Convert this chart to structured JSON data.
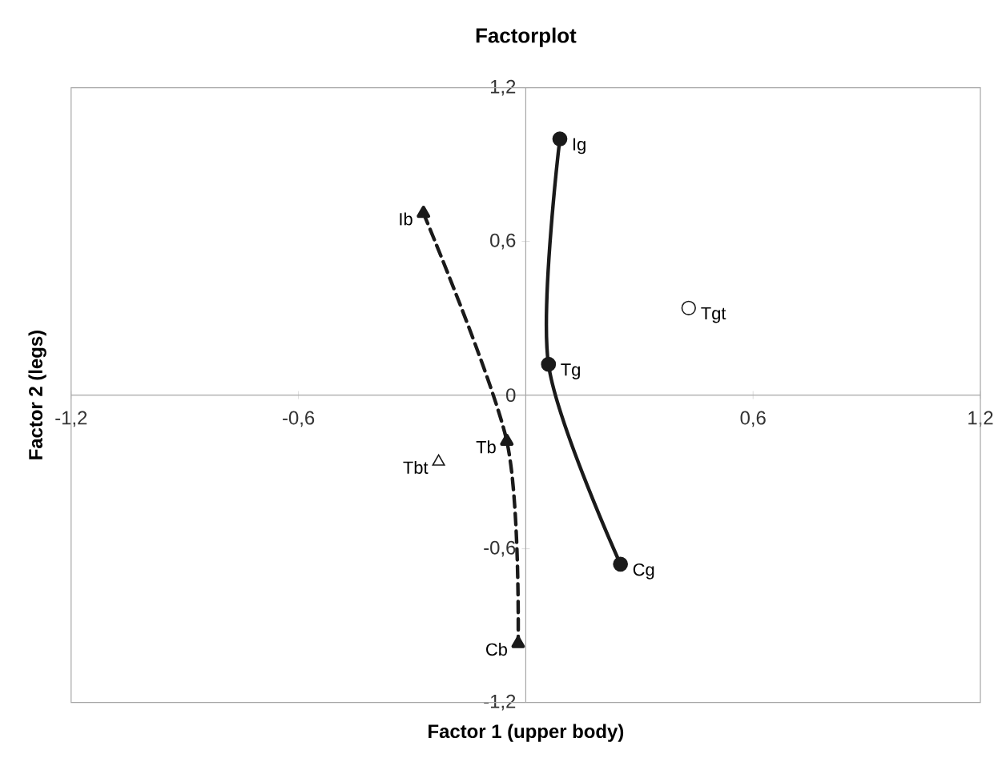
{
  "chart_data": {
    "type": "line",
    "title": "Factorplot",
    "xlabel": "Factor 1 (upper body)",
    "ylabel": "Factor 2 (legs)",
    "xlim": [
      -1.2,
      1.2
    ],
    "ylim": [
      -1.2,
      1.2
    ],
    "xticks": [
      {
        "value": -1.2,
        "label": "-1,2"
      },
      {
        "value": -0.6,
        "label": "-0,6"
      },
      {
        "value": 0.6,
        "label": "0,6"
      },
      {
        "value": 1.2,
        "label": "1,2"
      }
    ],
    "yticks": [
      {
        "value": -1.2,
        "label": "-1,2"
      },
      {
        "value": -0.6,
        "label": "-0,6"
      },
      {
        "value": 0,
        "label": "0"
      },
      {
        "value": 0.6,
        "label": "0,6"
      },
      {
        "value": 1.2,
        "label": "1,2"
      }
    ],
    "series": [
      {
        "color": "#1a1a1a",
        "marker": "circle",
        "line_style": "solid",
        "x": [
          0.09,
          0.06,
          0.25
        ],
        "values": [
          1.0,
          0.12,
          -0.66
        ]
      },
      {
        "color": "#1a1a1a",
        "marker": "triangle",
        "line_style": "dashed",
        "x": [
          -0.27,
          -0.05,
          -0.02
        ],
        "values": [
          0.71,
          -0.18,
          -0.97
        ]
      },
      {
        "type": "scatter",
        "color": "#1a1a1a",
        "marker": "circle",
        "x": [
          0.43
        ],
        "values": [
          0.34
        ]
      },
      {
        "type": "scatter",
        "color": "#1a1a1a",
        "marker": "triangle",
        "x": [
          -0.23
        ],
        "values": [
          -0.26
        ]
      }
    ],
    "annotations": [
      {
        "text": "Ig",
        "x": 0.09,
        "y": 1.0
      },
      {
        "text": "Tg",
        "x": 0.06,
        "y": 0.12
      },
      {
        "text": "Cg",
        "x": 0.25,
        "y": -0.66
      },
      {
        "text": "Tgt",
        "x": 0.43,
        "y": 0.34
      },
      {
        "text": "Ib",
        "x": -0.27,
        "y": 0.71
      },
      {
        "text": "Tb",
        "x": -0.05,
        "y": -0.18
      },
      {
        "text": "Cb",
        "x": -0.02,
        "y": -0.97
      },
      {
        "text": "Tbt",
        "x": -0.23,
        "y": -0.26
      }
    ]
  }
}
